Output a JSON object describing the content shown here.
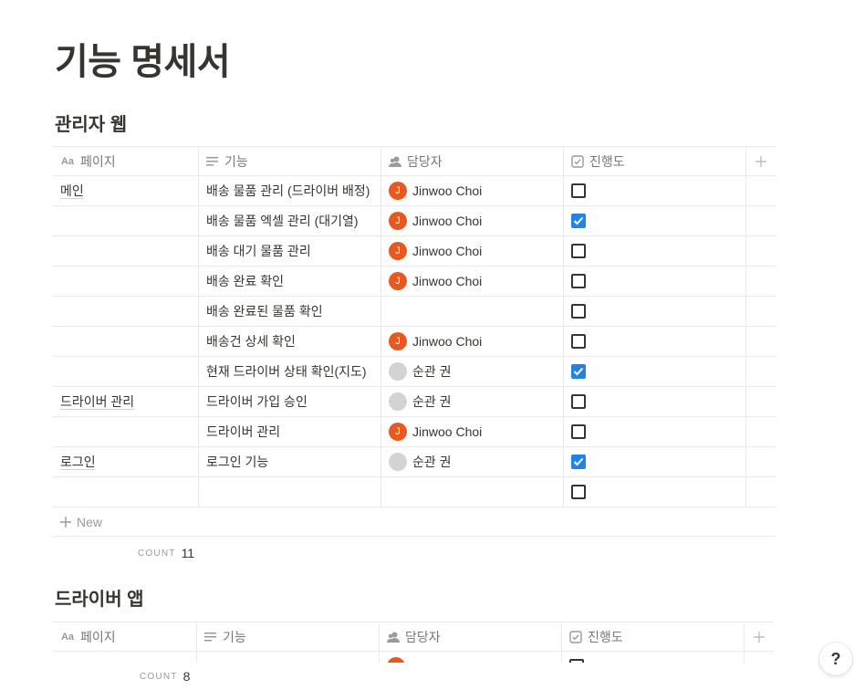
{
  "page_title": "기능 명세서",
  "sections": [
    {
      "title": "관리자 웹",
      "columns": [
        "페이지",
        "기능",
        "담당자",
        "진행도"
      ],
      "rows": [
        {
          "page": "메인",
          "feature": "배송 물품 관리 (드라이버 배정)",
          "assignee": "Jinwoo Choi",
          "initial": "J",
          "avatar": "orange",
          "done": false
        },
        {
          "page": "",
          "feature": "배송 물품 엑셀 관리 (대기열)",
          "assignee": "Jinwoo Choi",
          "initial": "J",
          "avatar": "orange",
          "done": true
        },
        {
          "page": "",
          "feature": "배송 대기 물품 관리",
          "assignee": "Jinwoo Choi",
          "initial": "J",
          "avatar": "orange",
          "done": false
        },
        {
          "page": "",
          "feature": "배송 완료 확인",
          "assignee": "Jinwoo Choi",
          "initial": "J",
          "avatar": "orange",
          "done": false
        },
        {
          "page": "",
          "feature": "배송 완료된 물품 확인",
          "assignee": "",
          "initial": "",
          "avatar": "none",
          "done": false
        },
        {
          "page": "",
          "feature": "배송건 상세 확인",
          "assignee": "Jinwoo Choi",
          "initial": "J",
          "avatar": "orange",
          "done": false
        },
        {
          "page": "",
          "feature": "현재 드라이버 상태 확인(지도)",
          "assignee": "순관 권",
          "initial": "",
          "avatar": "gray",
          "done": true
        },
        {
          "page": "드라이버 관리",
          "feature": "드라이버 가입 승인",
          "assignee": "순관 권",
          "initial": "",
          "avatar": "gray",
          "done": false
        },
        {
          "page": "",
          "feature": "드라이버 관리",
          "assignee": "Jinwoo Choi",
          "initial": "J",
          "avatar": "orange",
          "done": false
        },
        {
          "page": "로그인",
          "feature": "로그인 기능",
          "assignee": "순관 권",
          "initial": "",
          "avatar": "gray",
          "done": true
        },
        {
          "page": "",
          "feature": "",
          "assignee": "",
          "initial": "",
          "avatar": "none",
          "done": false
        }
      ],
      "new_label": "New",
      "count_label": "COUNT",
      "count_value": "11"
    },
    {
      "title": "드라이버 앱",
      "columns": [
        "페이지",
        "기능",
        "담당자",
        "진행도"
      ],
      "count_label": "COUNT",
      "count_value": "8"
    }
  ],
  "help_label": "?"
}
